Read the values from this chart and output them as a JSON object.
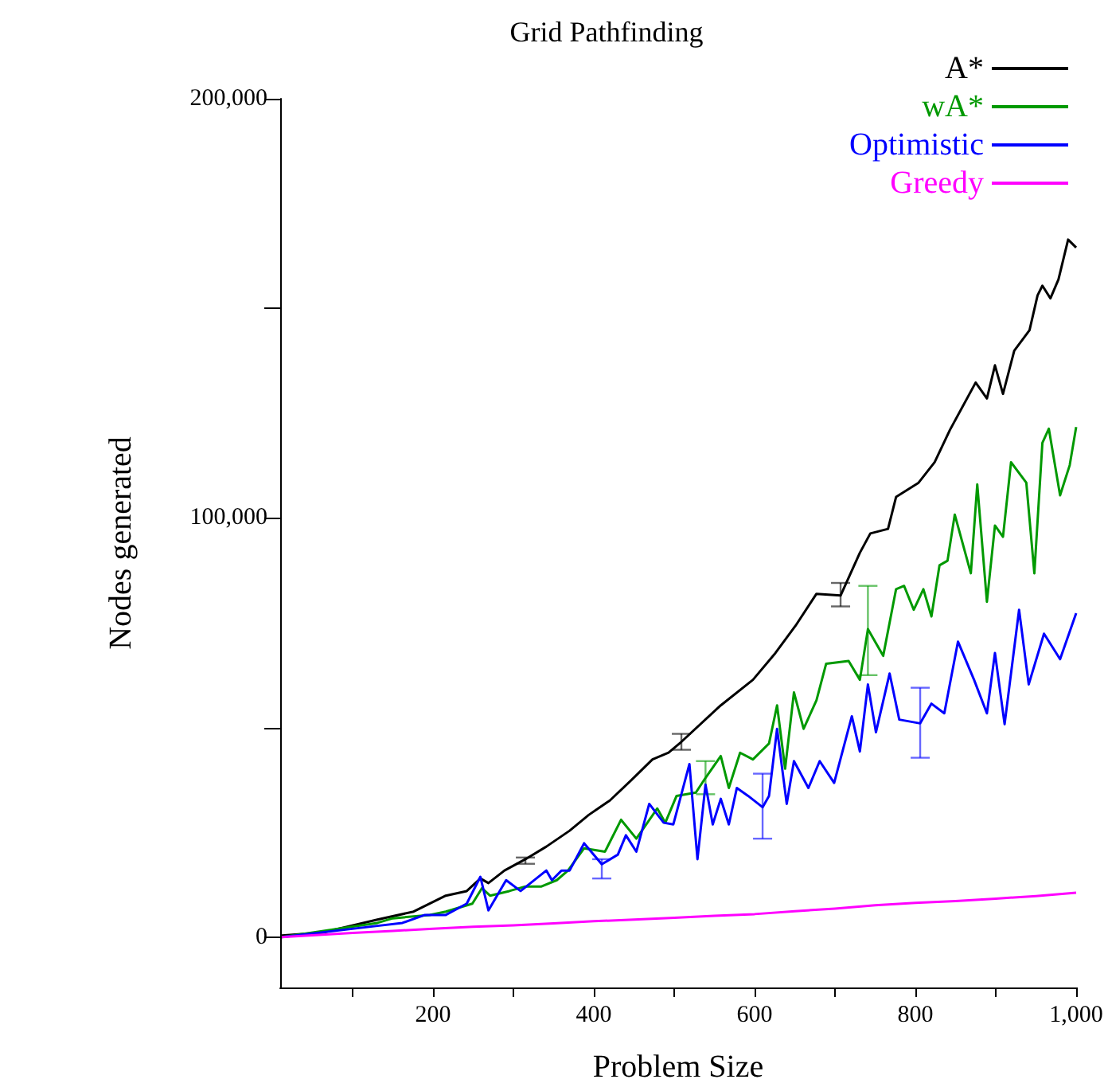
{
  "chart_data": {
    "type": "line",
    "title": "Grid Pathfinding",
    "xlabel": "Problem Size",
    "ylabel": "Nodes generated",
    "xlim": [
      10,
      1000
    ],
    "xticks": [
      {
        "value": 100,
        "label": null
      },
      {
        "value": 200,
        "label": "200"
      },
      {
        "value": 300,
        "label": null
      },
      {
        "value": 400,
        "label": "400"
      },
      {
        "value": 500,
        "label": null
      },
      {
        "value": 600,
        "label": "600"
      },
      {
        "value": 700,
        "label": null
      },
      {
        "value": 800,
        "label": "800"
      },
      {
        "value": 900,
        "label": null
      },
      {
        "value": 1000,
        "label": "1,000"
      }
    ],
    "ylim": [
      -12000,
      200000
    ],
    "yticks": [
      0,
      {
        "value": 50000,
        "label": null
      },
      {
        "value": 100000,
        "label": "100,000"
      },
      {
        "value": 150000,
        "label": null
      },
      {
        "value": 200000,
        "label": "200,000"
      }
    ],
    "grid": false,
    "legend": "top right",
    "series": [
      {
        "name": "A*",
        "color": "#000000",
        "x": [
          12,
          63,
          131,
          176,
          196,
          216,
          242,
          259,
          269,
          289,
          315,
          341,
          370,
          394,
          420,
          447,
          473,
          493,
          509,
          558,
          598,
          626,
          651,
          677,
          707,
          731,
          744,
          766,
          776,
          804,
          824,
          843,
          875,
          889,
          899,
          909,
          923,
          942,
          952,
          958,
          968,
          978,
          990,
          1000
        ],
        "values": [
          400,
          1100,
          4200,
          6100,
          8000,
          9900,
          11000,
          14000,
          12900,
          15900,
          18600,
          21600,
          25400,
          29200,
          32600,
          37500,
          42400,
          44000,
          46600,
          55300,
          61400,
          67800,
          74300,
          81900,
          81500,
          91700,
          96300,
          97400,
          105000,
          108400,
          113300,
          121000,
          132300,
          128500,
          136400,
          129600,
          139900,
          144800,
          153100,
          155400,
          152400,
          156900,
          166400,
          164500
        ],
        "errors": [
          null,
          null,
          null,
          null,
          null,
          null,
          null,
          null,
          null,
          null,
          [
            17500,
            19000
          ],
          null,
          null,
          null,
          null,
          null,
          null,
          null,
          [
            44700,
            48500
          ],
          null,
          null,
          null,
          null,
          null,
          [
            78900,
            84500
          ],
          null,
          null,
          null,
          null,
          null,
          null,
          null,
          null,
          null,
          null,
          null,
          null,
          null,
          null,
          null,
          null,
          null,
          null,
          null
        ]
      },
      {
        "name": "wA*",
        "color": "#009900",
        "x": [
          12,
          131,
          150,
          196,
          216,
          249,
          261,
          271,
          295,
          315,
          335,
          354,
          368,
          388,
          414,
          434,
          453,
          479,
          489,
          503,
          527,
          539,
          558,
          568,
          582,
          598,
          618,
          628,
          638,
          649,
          661,
          677,
          689,
          717,
          731,
          741,
          760,
          776,
          786,
          798,
          810,
          820,
          830,
          840,
          849,
          869,
          877,
          889,
          899,
          909,
          919,
          938,
          948,
          958,
          966,
          980,
          992,
          1000
        ],
        "values": [
          0,
          3400,
          4500,
          5300,
          6100,
          8000,
          11700,
          9900,
          11000,
          12100,
          12100,
          13600,
          15900,
          21200,
          20400,
          28000,
          23500,
          30700,
          27300,
          33700,
          34500,
          38000,
          43200,
          35600,
          44000,
          42400,
          46200,
          55300,
          40200,
          58400,
          49700,
          56500,
          65200,
          65900,
          61400,
          73500,
          67100,
          83000,
          83800,
          78100,
          83000,
          76500,
          88700,
          89800,
          100800,
          86800,
          108000,
          80000,
          98200,
          95500,
          113300,
          108400,
          86800,
          117900,
          121300,
          105400,
          112600,
          121700
        ],
        "errors": [
          null,
          null,
          null,
          null,
          null,
          null,
          null,
          null,
          null,
          null,
          null,
          null,
          null,
          null,
          null,
          null,
          null,
          null,
          null,
          null,
          null,
          [
            34100,
            42000
          ],
          null,
          null,
          null,
          null,
          null,
          null,
          null,
          null,
          null,
          null,
          null,
          null,
          null,
          [
            62500,
            83800
          ],
          null,
          null,
          null,
          null,
          null,
          null,
          null,
          null,
          null,
          null,
          null,
          null,
          null,
          null,
          null,
          null,
          null,
          null,
          null,
          null,
          null,
          null
        ]
      },
      {
        "name": "Optimistic",
        "color": "#0000ff",
        "x": [
          12,
          131,
          162,
          190,
          216,
          242,
          259,
          269,
          291,
          309,
          341,
          348,
          360,
          370,
          388,
          410,
          430,
          440,
          453,
          469,
          487,
          499,
          519,
          529,
          539,
          548,
          558,
          568,
          578,
          592,
          610,
          618,
          628,
          640,
          649,
          667,
          681,
          699,
          721,
          731,
          741,
          751,
          768,
          780,
          806,
          820,
          836,
          853,
          873,
          889,
          899,
          911,
          929,
          941,
          960,
          980,
          1000
        ],
        "values": [
          0,
          2700,
          3400,
          5300,
          5300,
          8000,
          14400,
          6400,
          13600,
          11000,
          15900,
          13600,
          15900,
          15900,
          22400,
          17400,
          19700,
          24300,
          20400,
          31800,
          27300,
          26900,
          41300,
          18600,
          36400,
          26900,
          33000,
          26900,
          35600,
          33700,
          31000,
          33700,
          49700,
          31800,
          42000,
          35600,
          42000,
          36800,
          52700,
          44300,
          60300,
          48900,
          62900,
          51900,
          51000,
          55700,
          53400,
          70500,
          61400,
          53400,
          67800,
          50800,
          78100,
          60300,
          72400,
          66300,
          77300
        ],
        "errors": [
          null,
          null,
          null,
          null,
          null,
          null,
          null,
          null,
          null,
          null,
          null,
          null,
          null,
          null,
          null,
          [
            14000,
            18600
          ],
          null,
          null,
          null,
          null,
          null,
          null,
          null,
          null,
          null,
          null,
          null,
          null,
          null,
          null,
          [
            23500,
            39000
          ],
          null,
          null,
          null,
          null,
          null,
          null,
          null,
          null,
          null,
          null,
          null,
          null,
          null,
          [
            42800,
            59500
          ],
          null,
          null,
          null,
          null,
          null,
          null,
          null,
          null,
          null,
          null,
          null,
          null
        ]
      },
      {
        "name": "Greedy",
        "color": "#ff00ff",
        "x": [
          12,
          100,
          150,
          200,
          250,
          300,
          350,
          400,
          450,
          500,
          550,
          600,
          650,
          700,
          750,
          800,
          850,
          900,
          950,
          1000
        ],
        "values": [
          0,
          1000,
          1500,
          2000,
          2500,
          2800,
          3300,
          3800,
          4200,
          4600,
          5100,
          5500,
          6200,
          6800,
          7600,
          8200,
          8600,
          9200,
          9800,
          10600
        ]
      }
    ]
  }
}
